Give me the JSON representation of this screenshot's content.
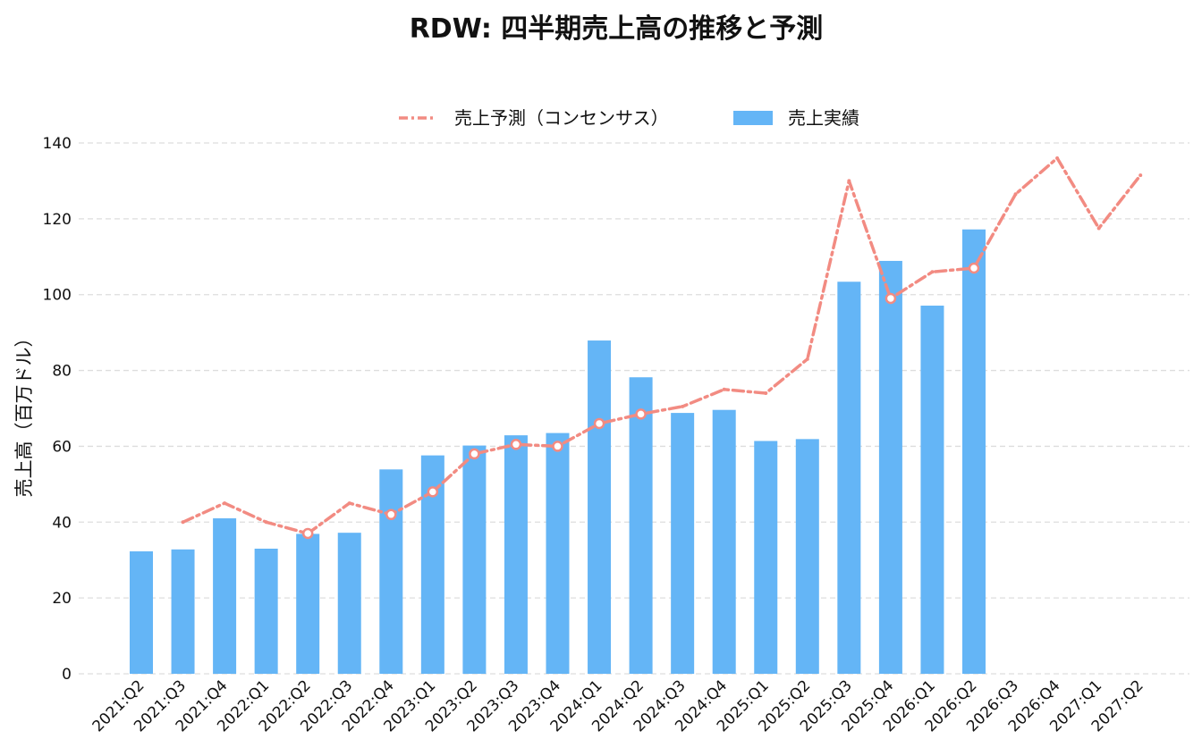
{
  "chart_data": {
    "type": "bar",
    "title": "RDW: 四半期売上高の推移と予測",
    "xlabel": "",
    "ylabel": "売上高（百万ドル）",
    "ylim": [
      0,
      140
    ],
    "yticks": [
      0,
      20,
      40,
      60,
      80,
      100,
      120,
      140
    ],
    "grid": true,
    "legend_position": "top-center",
    "categories": [
      "2021:Q2",
      "2021:Q3",
      "2021:Q4",
      "2022:Q1",
      "2022:Q2",
      "2022:Q3",
      "2022:Q4",
      "2023:Q1",
      "2023:Q2",
      "2023:Q3",
      "2023:Q4",
      "2024:Q1",
      "2024:Q2",
      "2024:Q3",
      "2024:Q4",
      "2025:Q1",
      "2025:Q2",
      "2025:Q3",
      "2025:Q4",
      "2026:Q1",
      "2026:Q2",
      "2026:Q3",
      "2026:Q4",
      "2027:Q1",
      "2027:Q2"
    ],
    "series": [
      {
        "name": "売上予測（コンセンサス）",
        "type": "line",
        "color": "#f28b82",
        "values": [
          null,
          40,
          45,
          40,
          37,
          45,
          42,
          48,
          58,
          60.5,
          60,
          66,
          68.5,
          70.5,
          75,
          74,
          83,
          130,
          99,
          106,
          107,
          126.5,
          136,
          117.5,
          131.5
        ],
        "markers": [
          false,
          false,
          false,
          false,
          true,
          false,
          true,
          true,
          true,
          true,
          true,
          true,
          true,
          false,
          false,
          false,
          false,
          false,
          true,
          false,
          true,
          false,
          false,
          false,
          false
        ]
      },
      {
        "name": "売上実績",
        "type": "bar",
        "color": "#64b5f6",
        "values": [
          32.3,
          32.8,
          41,
          33,
          36.9,
          37.2,
          53.9,
          57.6,
          60.2,
          62.9,
          63.5,
          87.9,
          78.2,
          68.8,
          69.6,
          61.4,
          61.9,
          103.4,
          108.9,
          97.1,
          117.2,
          null,
          null,
          null,
          null
        ]
      }
    ]
  }
}
